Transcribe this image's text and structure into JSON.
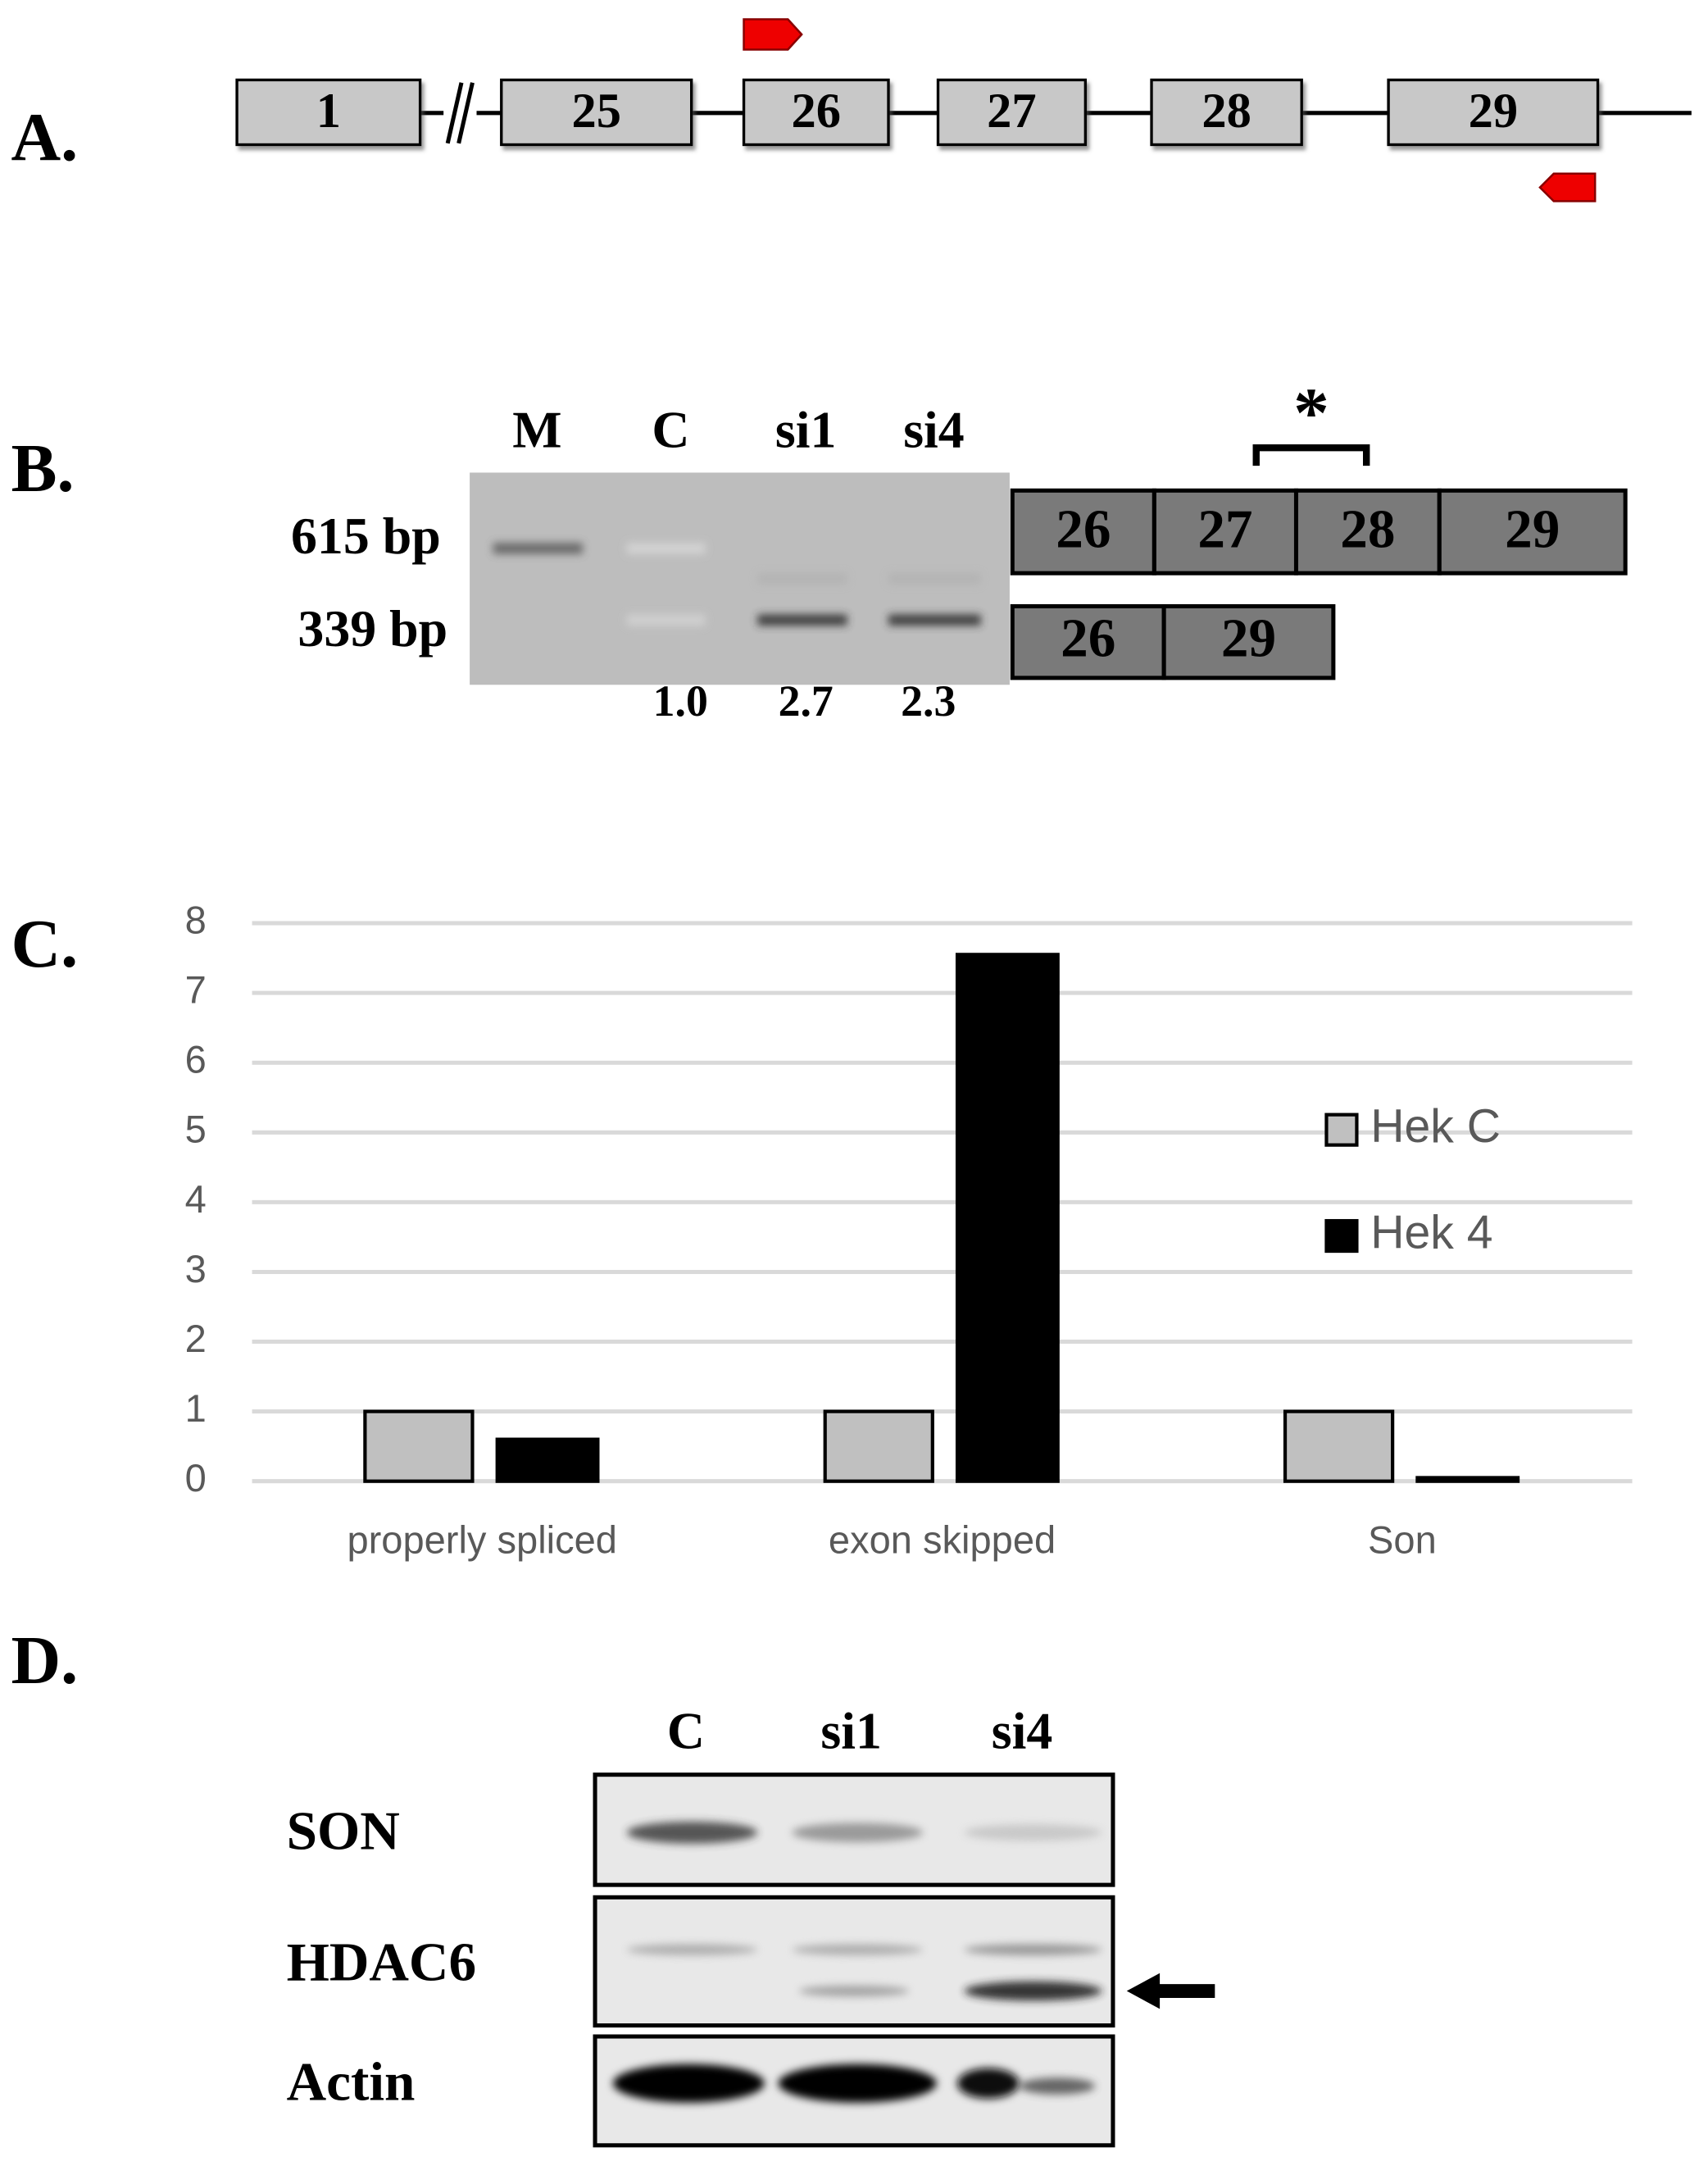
{
  "panel_a": {
    "label": "A.",
    "exons": [
      "1",
      "25",
      "26",
      "27",
      "28",
      "29"
    ]
  },
  "panel_b": {
    "label": "B.",
    "lanes": [
      "M",
      "C",
      "si1",
      "si4"
    ],
    "sizes": [
      "615 bp",
      "339 bp"
    ],
    "ratios": [
      "1.0",
      "2.7",
      "2.3"
    ],
    "star": "*",
    "full_exons": [
      "26",
      "27",
      "28",
      "29"
    ],
    "skipped_exons": [
      "26",
      "29"
    ]
  },
  "panel_c": {
    "label": "C."
  },
  "chart_data": {
    "type": "bar",
    "categories": [
      "properly spliced",
      "exon skipped",
      "Son"
    ],
    "series": [
      {
        "name": "Hek C",
        "color": "#c0c0c0",
        "values": [
          1,
          1,
          1
        ]
      },
      {
        "name": "Hek 4",
        "color": "#000000",
        "values": [
          0.6,
          7.55,
          0.05
        ]
      }
    ],
    "ylim": [
      0,
      8
    ],
    "yticks": [
      0,
      1,
      2,
      3,
      4,
      5,
      6,
      7,
      8
    ],
    "grid": true
  },
  "panel_d": {
    "label": "D.",
    "lanes": [
      "C",
      "si1",
      "si4"
    ],
    "rows": [
      "SON",
      "HDAC6",
      "Actin"
    ]
  }
}
